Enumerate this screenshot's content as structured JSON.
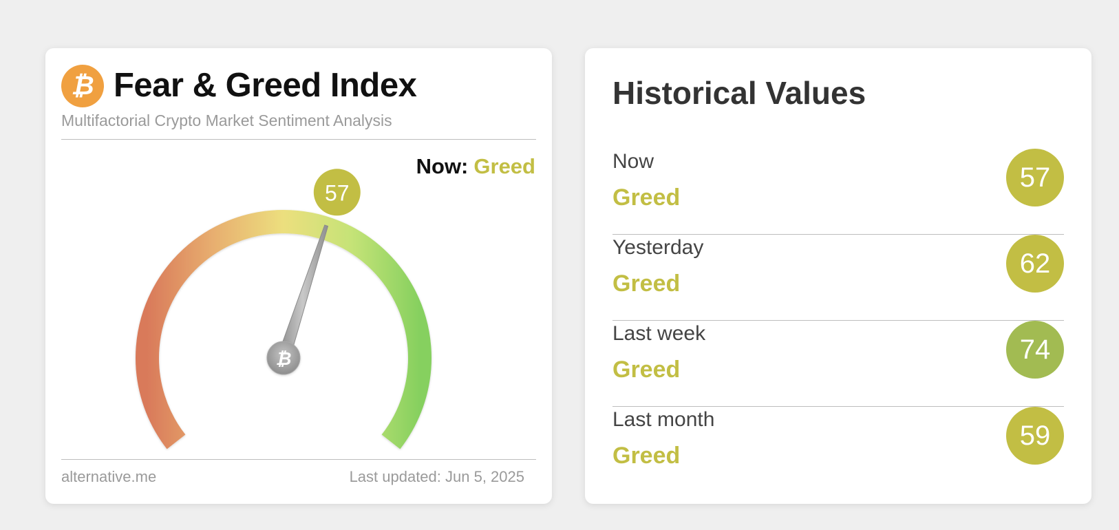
{
  "colors": {
    "greed": "#c2be44",
    "greed_strong": "#a2bb52",
    "bitcoin_orange": "#f0a040",
    "needle": "#9e9e9e"
  },
  "gauge_card": {
    "logo_icon": "bitcoin-icon",
    "logo_glyph": "₿",
    "title": "Fear & Greed Index",
    "subtitle": "Multifactorial Crypto Market Sentiment Analysis",
    "now_label": "Now:",
    "now_value": "Greed",
    "value": 57,
    "value_label": "57",
    "scale_min": 0,
    "scale_max": 100,
    "hub_glyph": "₿",
    "footer_source": "alternative.me",
    "footer_updated": "Last updated: Jun 5, 2025"
  },
  "history_card": {
    "title": "Historical Values",
    "rows": [
      {
        "period": "Now",
        "classification": "Greed",
        "value": "57",
        "badge_color": "#c2be44"
      },
      {
        "period": "Yesterday",
        "classification": "Greed",
        "value": "62",
        "badge_color": "#c2be44"
      },
      {
        "period": "Last week",
        "classification": "Greed",
        "value": "74",
        "badge_color": "#a2bb52"
      },
      {
        "period": "Last month",
        "classification": "Greed",
        "value": "59",
        "badge_color": "#c2be44"
      }
    ]
  }
}
